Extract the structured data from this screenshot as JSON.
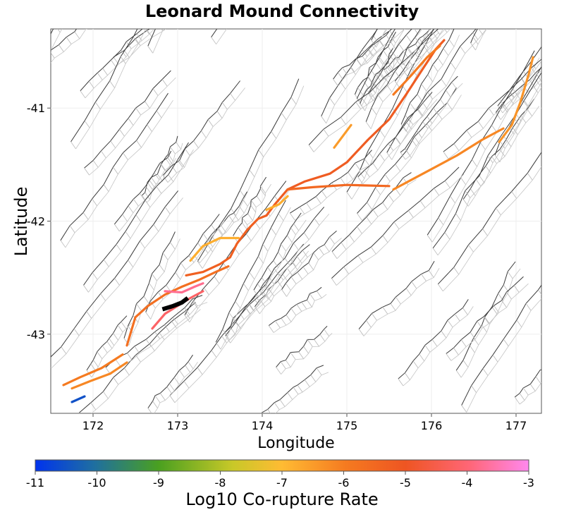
{
  "title": "Leonard Mound Connectivity",
  "chart_data": {
    "type": "map",
    "title": "Leonard Mound Connectivity",
    "xlabel": "Longitude",
    "ylabel": "Latitude",
    "xlim": [
      171.5,
      177.3
    ],
    "ylim": [
      -43.7,
      -40.3
    ],
    "xticks": [
      "172",
      "173",
      "174",
      "175",
      "176",
      "177"
    ],
    "yticks": [
      "-41",
      "-42",
      "-43"
    ],
    "colorbar": {
      "label": "Log10 Co-rupture Rate",
      "range": [
        -11,
        -3
      ],
      "ticks": [
        "-11",
        "-10",
        "-9",
        "-8",
        "-7",
        "-6",
        "-5",
        "-4",
        "-3"
      ],
      "colors": [
        "#0033ee",
        "#1f6fa0",
        "#4aa020",
        "#c8c828",
        "#ffbb33",
        "#f57a20",
        "#ee5522",
        "#ff6677",
        "#ff88ee"
      ]
    },
    "source_fault": "Leonard Mound",
    "highlighted_faults": [
      {
        "rate": -6.2,
        "pts": [
          [
            171.75,
            -43.48
          ],
          [
            171.95,
            -43.42
          ],
          [
            172.2,
            -43.35
          ],
          [
            172.4,
            -43.25
          ]
        ]
      },
      {
        "rate": -6.0,
        "pts": [
          [
            171.65,
            -43.45
          ],
          [
            171.85,
            -43.38
          ],
          [
            172.1,
            -43.3
          ],
          [
            172.35,
            -43.18
          ]
        ]
      },
      {
        "rate": -10.5,
        "pts": [
          [
            171.75,
            -43.6
          ],
          [
            171.9,
            -43.55
          ]
        ]
      },
      {
        "rate": -5.7,
        "pts": [
          [
            172.4,
            -43.1
          ],
          [
            172.5,
            -42.85
          ],
          [
            172.65,
            -42.75
          ],
          [
            172.85,
            -42.65
          ],
          [
            173.05,
            -42.58
          ],
          [
            173.25,
            -42.52
          ],
          [
            173.45,
            -42.45
          ],
          [
            173.6,
            -42.4
          ]
        ]
      },
      {
        "rate": -4.2,
        "pts": [
          [
            172.7,
            -42.95
          ],
          [
            172.85,
            -42.82
          ],
          [
            173.0,
            -42.75
          ],
          [
            173.15,
            -42.68
          ],
          [
            173.3,
            -42.62
          ]
        ]
      },
      {
        "rate": -3.8,
        "pts": [
          [
            172.85,
            -42.62
          ],
          [
            173.05,
            -42.63
          ],
          [
            173.2,
            -42.58
          ],
          [
            173.3,
            -42.55
          ]
        ]
      },
      {
        "rate": -5.3,
        "pts": [
          [
            173.1,
            -42.48
          ],
          [
            173.3,
            -42.45
          ],
          [
            173.5,
            -42.38
          ],
          [
            173.62,
            -42.32
          ],
          [
            173.7,
            -42.2
          ],
          [
            173.82,
            -42.08
          ],
          [
            173.95,
            -41.98
          ],
          [
            174.05,
            -41.95
          ]
        ]
      },
      {
        "rate": -6.8,
        "pts": [
          [
            173.15,
            -42.35
          ],
          [
            173.3,
            -42.22
          ],
          [
            173.5,
            -42.15
          ],
          [
            173.72,
            -42.15
          ]
        ]
      },
      {
        "rate": -5.2,
        "pts": [
          [
            174.05,
            -41.95
          ],
          [
            174.15,
            -41.85
          ],
          [
            174.3,
            -41.72
          ],
          [
            174.5,
            -41.65
          ],
          [
            174.8,
            -41.58
          ],
          [
            175.0,
            -41.48
          ],
          [
            175.25,
            -41.28
          ],
          [
            175.5,
            -41.1
          ],
          [
            175.7,
            -40.88
          ],
          [
            175.9,
            -40.65
          ],
          [
            176.05,
            -40.48
          ],
          [
            176.15,
            -40.4
          ]
        ]
      },
      {
        "rate": -5.5,
        "pts": [
          [
            174.3,
            -41.72
          ],
          [
            174.6,
            -41.7
          ],
          [
            175.0,
            -41.68
          ],
          [
            175.5,
            -41.69
          ]
        ]
      },
      {
        "rate": -6.8,
        "pts": [
          [
            174.3,
            -41.78
          ],
          [
            174.2,
            -41.85
          ],
          [
            174.05,
            -41.9
          ]
        ]
      },
      {
        "rate": -6.5,
        "pts": [
          [
            174.85,
            -41.35
          ],
          [
            174.95,
            -41.25
          ],
          [
            175.05,
            -41.15
          ]
        ]
      },
      {
        "rate": -6.2,
        "pts": [
          [
            175.55,
            -41.72
          ],
          [
            175.9,
            -41.58
          ],
          [
            176.3,
            -41.42
          ],
          [
            176.6,
            -41.28
          ],
          [
            176.85,
            -41.18
          ]
        ]
      },
      {
        "rate": -6.4,
        "pts": [
          [
            176.8,
            -41.3
          ],
          [
            176.95,
            -41.15
          ],
          [
            177.05,
            -40.95
          ],
          [
            177.15,
            -40.7
          ],
          [
            177.2,
            -40.55
          ]
        ]
      },
      {
        "rate": -6.0,
        "pts": [
          [
            175.55,
            -40.88
          ],
          [
            175.75,
            -40.72
          ],
          [
            175.95,
            -40.55
          ],
          [
            176.1,
            -40.45
          ]
        ]
      }
    ],
    "source_segment": [
      [
        172.82,
        -42.78
      ],
      [
        172.95,
        -42.75
      ],
      [
        173.05,
        -42.72
      ],
      [
        173.12,
        -42.68
      ]
    ]
  }
}
